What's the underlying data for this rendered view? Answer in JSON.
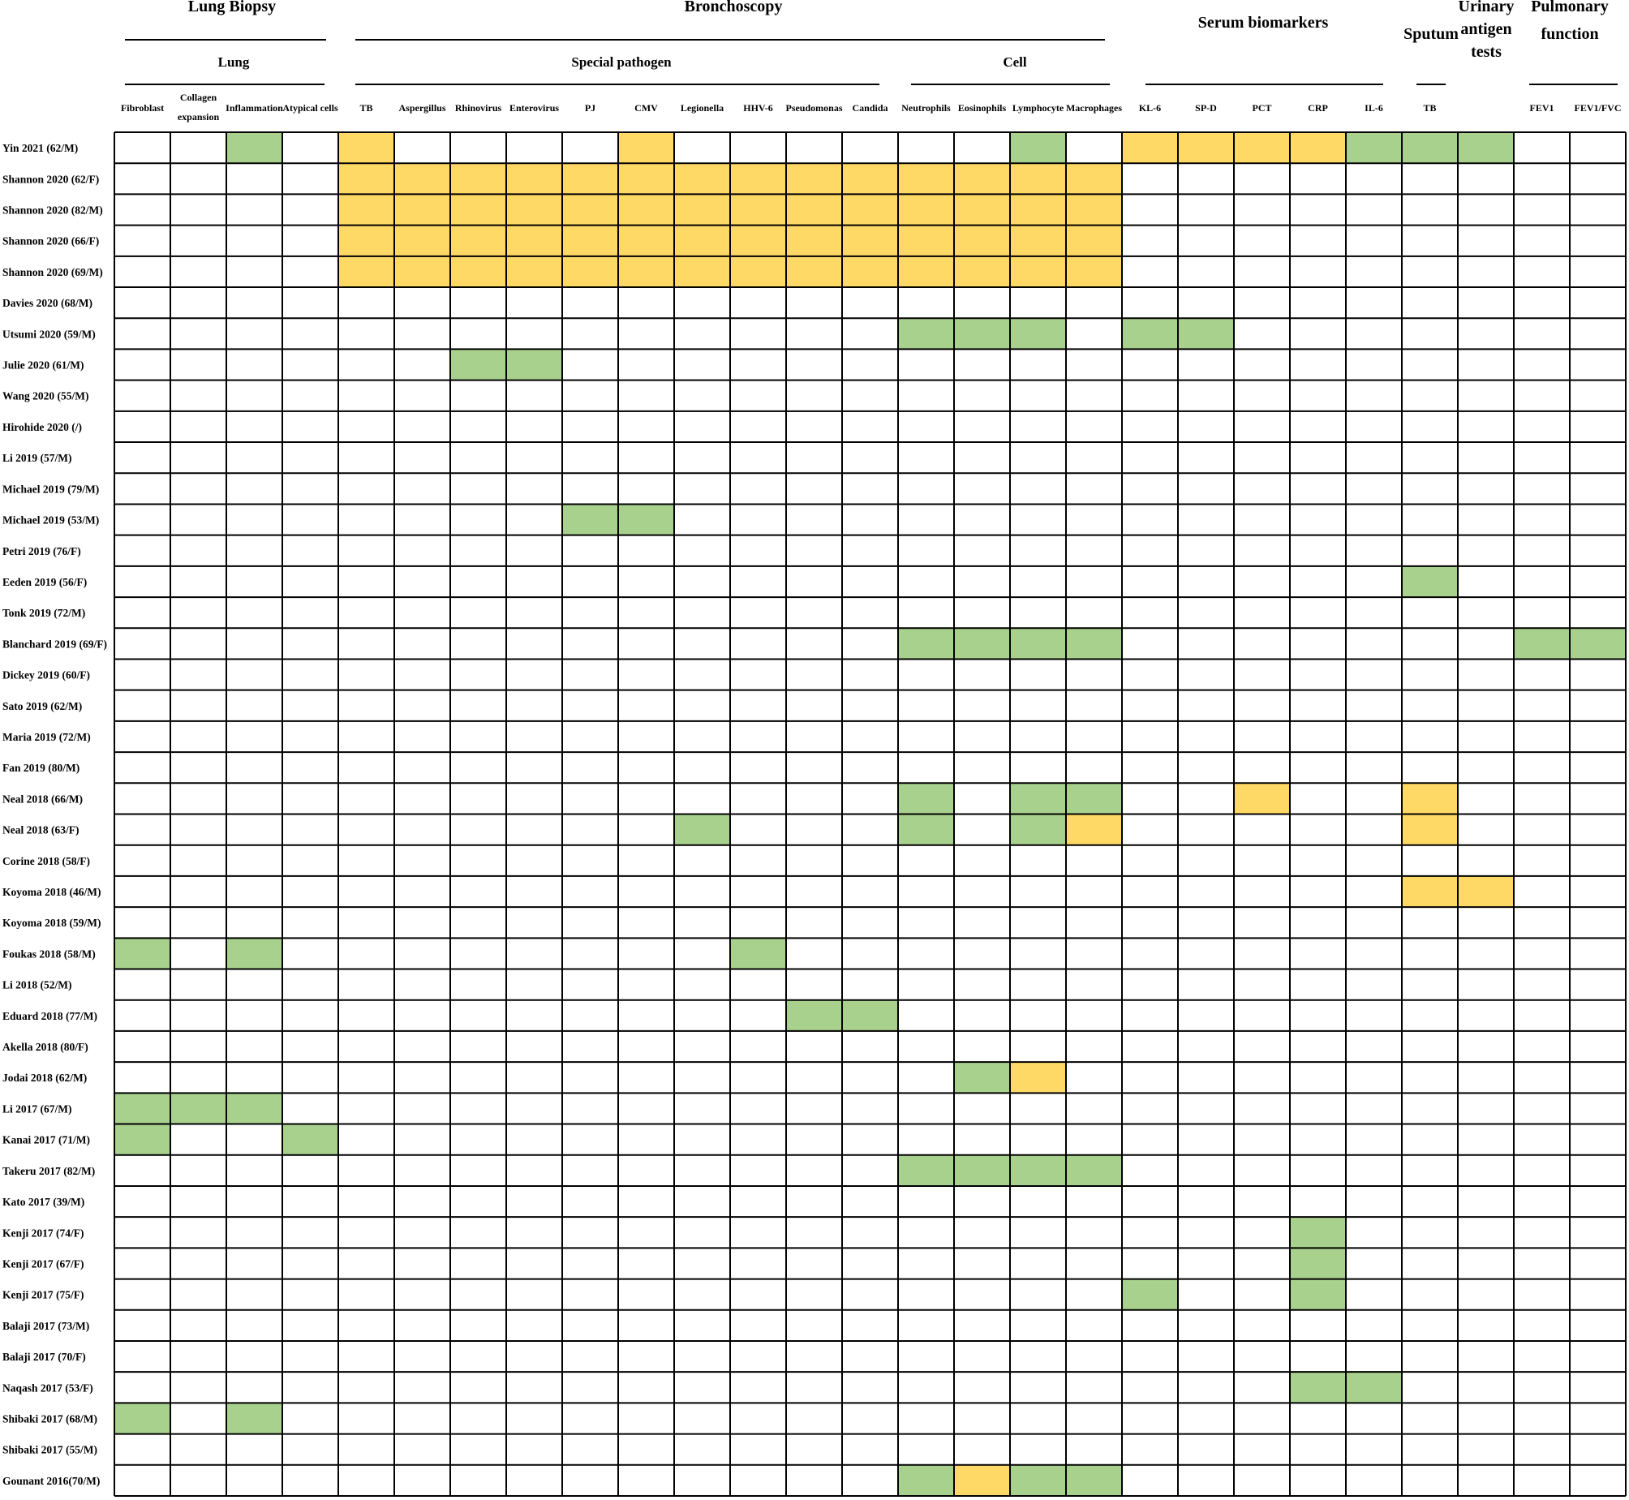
{
  "chart_data": {
    "type": "heatmap",
    "colors": {
      "green": "#A9D18E",
      "yellow": "#FFD966",
      "empty": "#FFFFFF",
      "border": "#000000"
    },
    "groups": [
      {
        "label": "Lung Biopsy"
      },
      {
        "label": "Bronchoscopy"
      },
      {
        "label": "Serum biomarkers"
      },
      {
        "label": "Sputum"
      },
      {
        "label": "Urinary antigen tests"
      },
      {
        "label": "Pulmonary function"
      }
    ],
    "subgroups": [
      {
        "label": "Lung"
      },
      {
        "label": "Special pathogen"
      },
      {
        "label": "Cell"
      },
      {
        "label": ""
      },
      {
        "label": ""
      },
      {
        "label": ""
      }
    ],
    "columns": [
      "Fibroblast",
      "Collagen expansion",
      "Inflammation",
      "Atypical cells",
      "TB",
      "Aspergillus",
      "Rhinovirus",
      "Enterovirus",
      "PJ",
      "CMV",
      "Legionella",
      "HHV-6",
      "Pseudomonas",
      "Candida",
      "Neutrophils",
      "Eosinophils",
      "Lymphocyte",
      "Macrophages",
      "KL-6",
      "SP-D",
      "PCT",
      "CRP",
      "IL-6",
      "TB",
      "",
      "FEV1",
      "FEV1/FVC"
    ],
    "rows": [
      "Yin 2021 (62/M)",
      "Shannon 2020 (62/F)",
      "Shannon 2020 (82/M)",
      "Shannon 2020 (66/F)",
      "Shannon 2020 (69/M)",
      "Davies 2020 (68/M)",
      "Utsumi 2020 (59/M)",
      "Julie 2020 (61/M)",
      "Wang 2020 (55/M)",
      "Hirohide 2020 (/)",
      "Li 2019 (57/M)",
      "Michael 2019 (79/M)",
      "Michael 2019 (53/M)",
      "Petri 2019 (76/F)",
      "Eeden 2019 (56/F)",
      "Tonk 2019 (72/M)",
      "Blanchard 2019 (69/F)",
      "Dickey 2019 (60/F)",
      "Sato 2019 (62/M)",
      "Maria 2019 (72/M)",
      "Fan 2019 (80/M)",
      "Neal 2018 (66/M)",
      "Neal 2018 (63/F)",
      "Corine 2018 (58/F)",
      "Koyoma 2018 (46/M)",
      "Koyoma 2018 (59/M)",
      "Foukas 2018 (58/M)",
      "Li 2018 (52/M)",
      "Eduard 2018 (77/M)",
      "Akella 2018 (80/F)",
      "Jodai 2018 (62/M)",
      "Li 2017 (67/M)",
      "Kanai 2017 (71/M)",
      "Takeru 2017 (82/M)",
      "Kato 2017 (39/M)",
      "Kenji 2017 (74/F)",
      "Kenji 2017 (67/F)",
      "Kenji 2017 (75/F)",
      "Balaji 2017 (73/M)",
      "Balaji 2017 (70/F)",
      "Naqash 2017 (53/F)",
      "Shibaki 2017 (68/M)",
      "Shibaki 2017 (55/M)",
      "Gounant 2016(70/M)"
    ],
    "cells": [
      "00G0Y0000Y000000G0YYYYGGG00",
      "0000YYYYYYYYYYYYYY000000000",
      "0000YYYYYYYYYYYYYY000000000",
      "0000YYYYYYYYYYYYYY000000000",
      "0000YYYYYYYYYYYYYY000000000",
      "000000000000000000000000000",
      "00000000000000GGG0GG0000000",
      "000000GG0000000000000000000",
      "000000000000000000000000000",
      "000000000000000000000000000",
      "000000000000000000000000000",
      "000000000000000000000000000",
      "00000000GG00000000000000000",
      "000000000000000000000000000",
      "00000000000000000000000G000",
      "000000000000000000000000000",
      "00000000000000GGGG0000000GG",
      "000000000000000000000000000",
      "000000000000000000000000000",
      "000000000000000000000000000",
      "000000000000000000000000000",
      "00000000000000G0GG00Y00Y000",
      "0000000000G000G0GY00000Y000",
      "000000000000000000000000000",
      "00000000000000000000000YY00",
      "000000000000000000000000000",
      "G0G00000000G000000000000000",
      "000000000000000000000000000",
      "000000000000GG0000000000000",
      "000000000000000000000000000",
      "000000000000000GY0000000000",
      "GGG000000000000000000000000",
      "G00G00000000000000000000000",
      "00000000000000GGGG000000000",
      "000000000000000000000000000",
      "000000000000000000000G00000",
      "000000000000000000000G00000",
      "000000000000000000G00G00000",
      "000000000000000000000000000",
      "000000000000000000000000000",
      "000000000000000000000GG0000",
      "G0G000000000000000000000000",
      "000000000000000000000000000",
      "00000000000000GYGG000000000"
    ]
  }
}
